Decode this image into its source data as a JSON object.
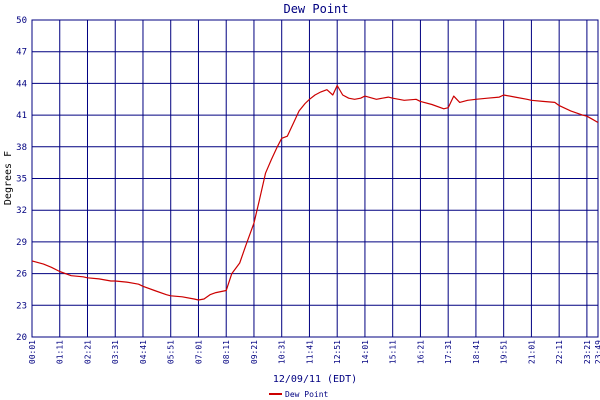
{
  "chart_data": {
    "type": "line",
    "title": "Dew Point",
    "ylabel": "Degrees F",
    "xlabel": "12/09/11 (EDT)",
    "ylim": [
      20,
      50
    ],
    "yticks": [
      20,
      23,
      26,
      29,
      32,
      35,
      38,
      41,
      44,
      47,
      50
    ],
    "xticks": [
      "00:01",
      "01:11",
      "02:21",
      "03:31",
      "04:41",
      "05:51",
      "07:01",
      "08:11",
      "09:21",
      "10:31",
      "11:41",
      "12:51",
      "14:01",
      "15:11",
      "16:21",
      "17:31",
      "18:41",
      "19:51",
      "21:01",
      "22:11",
      "23:21",
      "23:49"
    ],
    "grid": true,
    "legend": {
      "position": "bottom-center",
      "entries": [
        "Dew Point"
      ]
    },
    "colors": {
      "line": "#cc0000",
      "grid": "#000080",
      "text": "#000080"
    },
    "series": [
      {
        "name": "Dew Point",
        "x": [
          "00:01",
          "00:30",
          "00:50",
          "01:11",
          "01:40",
          "02:10",
          "02:21",
          "02:50",
          "03:20",
          "03:31",
          "04:00",
          "04:30",
          "04:41",
          "05:10",
          "05:40",
          "05:51",
          "06:20",
          "06:50",
          "07:01",
          "07:15",
          "07:30",
          "07:45",
          "08:11",
          "08:25",
          "08:45",
          "09:00",
          "09:21",
          "09:35",
          "09:50",
          "10:05",
          "10:20",
          "10:31",
          "10:45",
          "11:00",
          "11:15",
          "11:30",
          "11:41",
          "11:55",
          "12:10",
          "12:25",
          "12:40",
          "12:51",
          "13:05",
          "13:20",
          "13:35",
          "13:50",
          "14:01",
          "14:30",
          "15:00",
          "15:11",
          "15:40",
          "16:10",
          "16:21",
          "16:50",
          "17:20",
          "17:31",
          "17:45",
          "18:00",
          "18:20",
          "18:41",
          "19:10",
          "19:40",
          "19:51",
          "20:20",
          "20:50",
          "21:01",
          "21:30",
          "22:00",
          "22:11",
          "22:40",
          "23:10",
          "23:21",
          "23:35",
          "23:49"
        ],
        "y": [
          27.2,
          26.9,
          26.6,
          26.2,
          25.8,
          25.7,
          25.6,
          25.5,
          25.3,
          25.3,
          25.2,
          25.0,
          24.8,
          24.4,
          24.0,
          23.9,
          23.8,
          23.6,
          23.5,
          23.6,
          24.0,
          24.2,
          24.4,
          26.0,
          27.0,
          28.6,
          30.8,
          33.0,
          35.5,
          36.8,
          38.0,
          38.8,
          39.0,
          40.2,
          41.4,
          42.1,
          42.5,
          42.9,
          43.2,
          43.4,
          42.9,
          43.8,
          42.9,
          42.6,
          42.5,
          42.6,
          42.8,
          42.5,
          42.7,
          42.6,
          42.4,
          42.5,
          42.3,
          42.0,
          41.6,
          41.7,
          42.8,
          42.2,
          42.4,
          42.5,
          42.6,
          42.7,
          42.9,
          42.7,
          42.5,
          42.4,
          42.3,
          42.2,
          41.9,
          41.4,
          41.0,
          40.9,
          40.6,
          40.3
        ]
      }
    ]
  }
}
